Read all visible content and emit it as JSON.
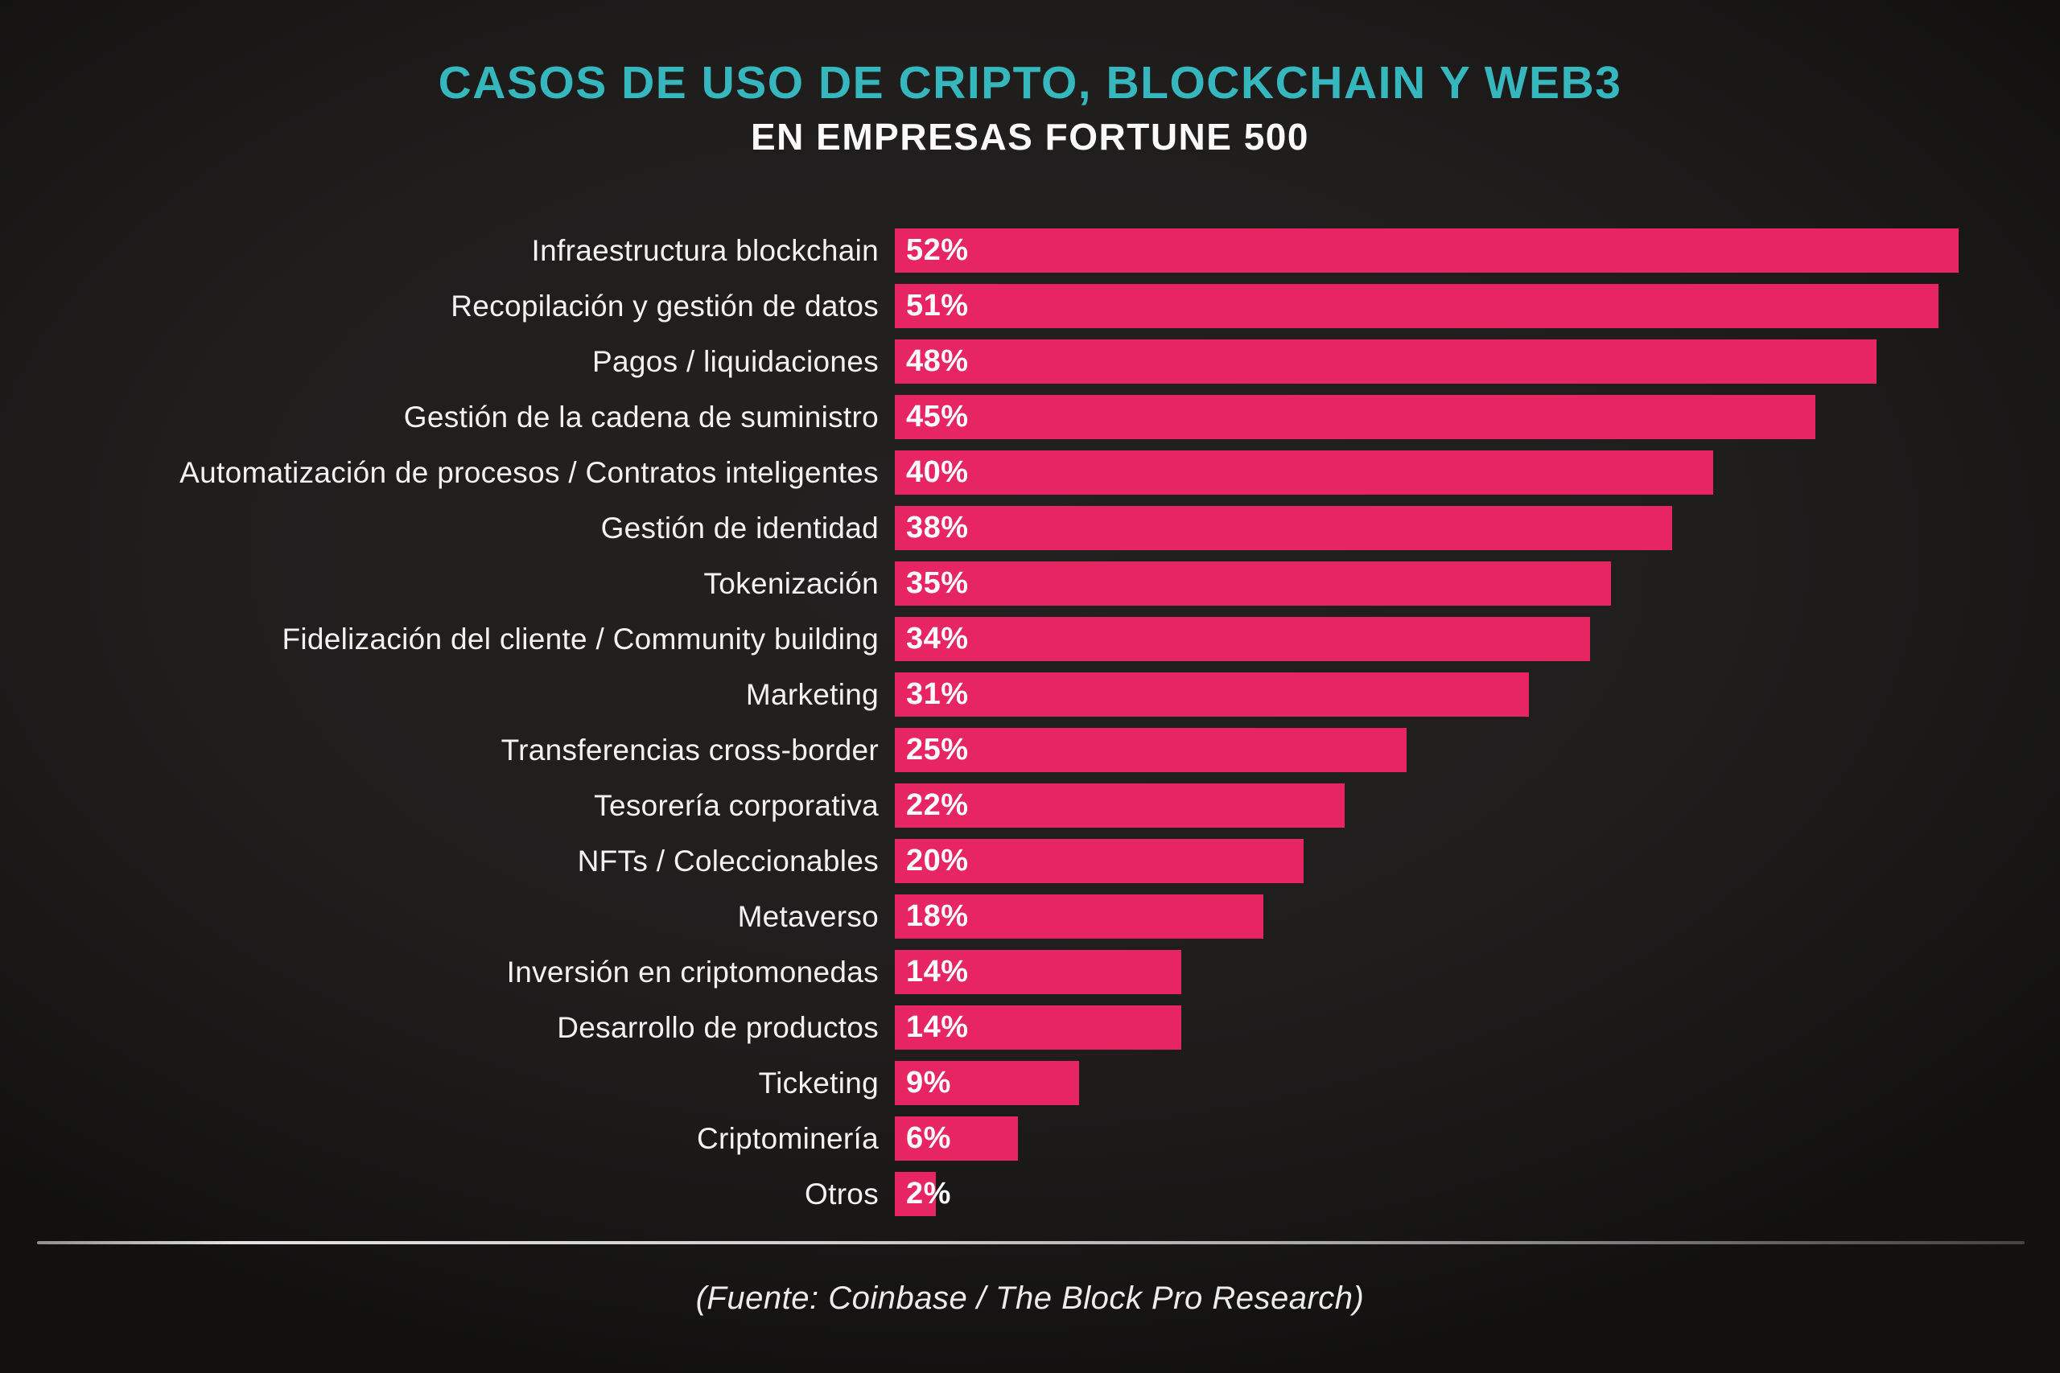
{
  "header": {
    "title": "CASOS DE USO DE CRIPTO, BLOCKCHAIN Y WEB3",
    "subtitle": "EN EMPRESAS FORTUNE 500"
  },
  "footer": {
    "source": "(Fuente: Coinbase / The Block Pro Research)"
  },
  "colors": {
    "background": "#201e1d",
    "bar": "#e72563",
    "title": "#36b6bd",
    "label_text": "#f2f2f2",
    "value_text": "#ffffff",
    "divider": "#c9c9c9"
  },
  "chart_data": {
    "type": "bar",
    "orientation": "horizontal",
    "title": "CASOS DE USO DE CRIPTO, BLOCKCHAIN Y WEB3 EN EMPRESAS FORTUNE 500",
    "unit": "%",
    "xlim": [
      0,
      52
    ],
    "grid": false,
    "legend": false,
    "value_labels": "inside-start",
    "categories": [
      "Infraestructura blockchain",
      "Recopilación y gestión de datos",
      "Pagos / liquidaciones",
      "Gestión de la cadena de suministro",
      "Automatización de procesos / Contratos inteligentes",
      "Gestión de identidad",
      "Tokenización",
      "Fidelización del cliente / Community building",
      "Marketing",
      "Transferencias cross-border",
      "Tesorería corporativa",
      "NFTs / Coleccionables",
      "Metaverso",
      "Inversión en criptomonedas",
      "Desarrollo de productos",
      "Ticketing",
      "Criptominería",
      "Otros"
    ],
    "values": [
      52,
      51,
      48,
      45,
      40,
      38,
      35,
      34,
      31,
      25,
      22,
      20,
      18,
      14,
      14,
      9,
      6,
      2
    ]
  }
}
